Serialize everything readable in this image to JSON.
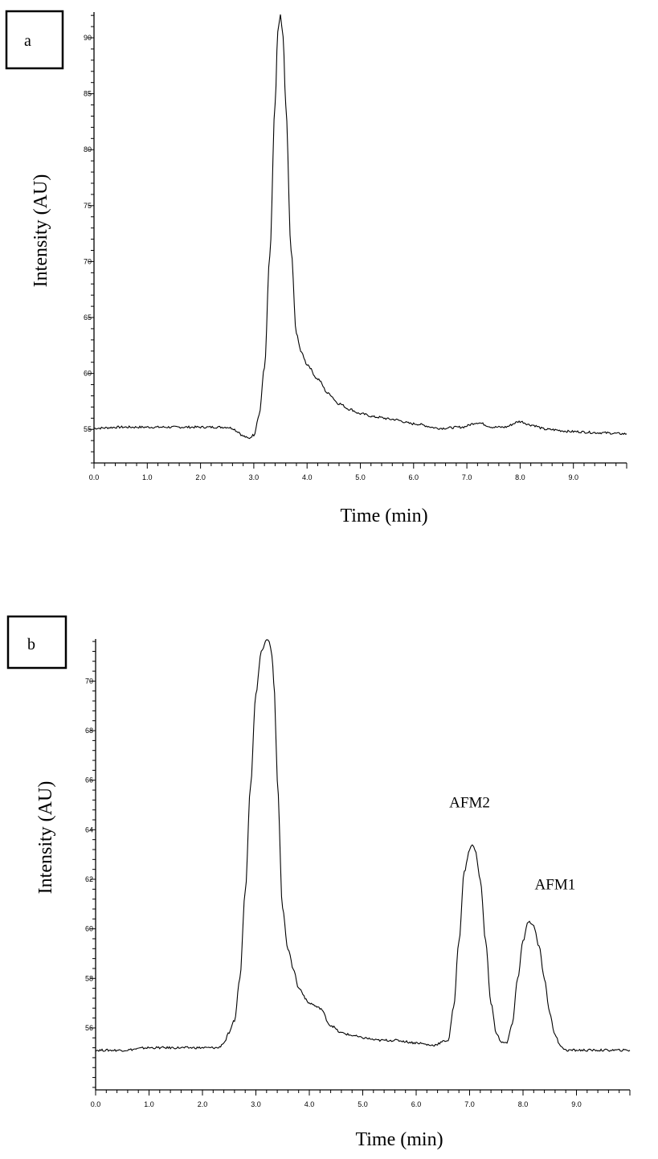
{
  "chart_data": [
    {
      "type": "line",
      "panel_label": "a",
      "xlabel": "Time (min)",
      "ylabel": "Intensity (AU)",
      "xlim": [
        0.0,
        10.0
      ],
      "ylim": [
        52.0,
        92.3
      ],
      "x_ticks": [
        0.0,
        1.0,
        2.0,
        3.0,
        4.0,
        5.0,
        6.0,
        7.0,
        8.0,
        9.0
      ],
      "x_tick_labels": [
        "0.0",
        "1.0",
        "2.0",
        "3.0",
        "4.0",
        "5.0",
        "6.0",
        "7.0",
        "8.0",
        "9.0"
      ],
      "y_ticks": [
        55,
        60,
        65,
        70,
        75,
        80,
        85,
        90
      ],
      "y_tick_labels": [
        "55",
        "60",
        "65",
        "70",
        "75",
        "80",
        "85",
        "90"
      ],
      "annotations": [],
      "series": [
        {
          "x": [
            0.0,
            0.5,
            1.0,
            1.5,
            2.0,
            2.5,
            2.6,
            2.7,
            2.8,
            2.9,
            3.0,
            3.1,
            3.2,
            3.3,
            3.4,
            3.45,
            3.5,
            3.55,
            3.6,
            3.7,
            3.8,
            3.9,
            4.0,
            4.2,
            4.4,
            4.6,
            4.8,
            5.0,
            5.3,
            5.6,
            6.0,
            6.5,
            6.9,
            7.2,
            7.5,
            7.7,
            8.0,
            8.2,
            8.5,
            9.0,
            9.5,
            10.0
          ],
          "y": [
            55.1,
            55.2,
            55.2,
            55.2,
            55.2,
            55.2,
            55.1,
            54.8,
            54.4,
            54.2,
            54.5,
            56.3,
            60.5,
            70.5,
            84.0,
            90.5,
            92.0,
            90.0,
            84.0,
            71.0,
            63.5,
            61.8,
            60.8,
            59.5,
            58.2,
            57.3,
            56.8,
            56.4,
            56.1,
            55.9,
            55.5,
            55.1,
            55.2,
            55.6,
            55.2,
            55.2,
            55.7,
            55.4,
            55.0,
            54.8,
            54.7,
            54.6
          ]
        }
      ]
    },
    {
      "type": "line",
      "panel_label": "b",
      "xlabel": "Time (min)",
      "ylabel": "Intensity (AU)",
      "xlim": [
        0.0,
        10.0
      ],
      "ylim": [
        53.5,
        71.7
      ],
      "x_ticks": [
        0.0,
        1.0,
        2.0,
        3.0,
        4.0,
        5.0,
        6.0,
        7.0,
        8.0,
        9.0
      ],
      "x_tick_labels": [
        "0.0",
        "1.0",
        "2.0",
        "3.0",
        "4.0",
        "5.0",
        "6.0",
        "7.0",
        "8.0",
        "9.0"
      ],
      "y_ticks": [
        56,
        58,
        60,
        62,
        64,
        66,
        68,
        70
      ],
      "y_tick_labels": [
        "56",
        "58",
        "60",
        "62",
        "64",
        "66",
        "68",
        "70"
      ],
      "annotations": [
        {
          "text": "AFM2",
          "x": 7.0,
          "y": 64.9
        },
        {
          "text": "AFM1",
          "x": 8.6,
          "y": 61.6
        }
      ],
      "series": [
        {
          "x": [
            0.0,
            0.5,
            1.0,
            1.5,
            2.0,
            2.3,
            2.4,
            2.5,
            2.6,
            2.7,
            2.8,
            2.9,
            3.0,
            3.1,
            3.2,
            3.25,
            3.3,
            3.35,
            3.4,
            3.5,
            3.6,
            3.7,
            3.8,
            4.0,
            4.2,
            4.4,
            4.6,
            4.8,
            5.0,
            5.3,
            5.6,
            6.0,
            6.3,
            6.6,
            6.7,
            6.8,
            6.9,
            7.0,
            7.05,
            7.1,
            7.2,
            7.3,
            7.4,
            7.5,
            7.6,
            7.7,
            7.8,
            7.9,
            8.0,
            8.1,
            8.2,
            8.3,
            8.4,
            8.5,
            8.6,
            8.7,
            8.8,
            9.0,
            9.5,
            10.0
          ],
          "y": [
            55.1,
            55.1,
            55.2,
            55.2,
            55.2,
            55.2,
            55.4,
            55.8,
            56.3,
            58.0,
            61.5,
            65.8,
            69.5,
            71.2,
            71.7,
            71.6,
            71.0,
            69.5,
            66.0,
            60.8,
            59.2,
            58.4,
            57.6,
            57.0,
            56.8,
            56.1,
            55.8,
            55.7,
            55.6,
            55.5,
            55.5,
            55.4,
            55.3,
            55.5,
            56.8,
            59.5,
            62.3,
            63.2,
            63.4,
            63.2,
            62.0,
            59.5,
            57.0,
            55.8,
            55.4,
            55.4,
            56.2,
            58.0,
            59.5,
            60.3,
            60.1,
            59.3,
            58.0,
            56.6,
            55.7,
            55.3,
            55.1,
            55.1,
            55.1,
            55.1
          ]
        }
      ]
    }
  ]
}
